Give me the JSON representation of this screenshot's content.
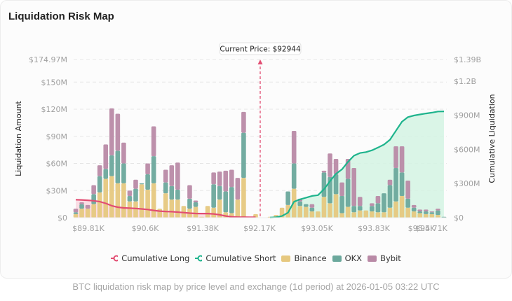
{
  "title": "Liquidation Risk Map",
  "caption": "BTC liquidation risk map by price level and exchange (1d period) at 2026-01-05 03:22 UTC",
  "colors": {
    "long": "#e24d72",
    "long_fill": "#f9d7df",
    "short": "#1fb48d",
    "short_fill": "#d4f3e3",
    "binance": "#e6c87f",
    "okx": "#6ba89c",
    "bybit": "#b98aa6"
  },
  "chart_data": {
    "type": "bar",
    "title": "Liquidation Risk Map",
    "current_price_label": "Current Price: $92944",
    "current_price": 92944,
    "ylabel_left": "Liquidation Amount",
    "ylabel_right": "Cumulative Liquidation",
    "ylim_left": [
      0,
      174.97
    ],
    "ylim_right": [
      0,
      1390
    ],
    "yticks_left": [
      "$0",
      "$30M",
      "$60M",
      "$90M",
      "$120M",
      "$150M",
      "$174.97M"
    ],
    "yticks_left_values": [
      0,
      30,
      60,
      90,
      120,
      150,
      174.97
    ],
    "yticks_right": [
      "$0",
      "$300M",
      "$600M",
      "$900M",
      "$1.2B",
      "$1.39B"
    ],
    "yticks_right_values": [
      0,
      300,
      600,
      900,
      1200,
      1390
    ],
    "xticks": [
      "$89.81K",
      "$90.6K",
      "$91.38K",
      "$92.17K",
      "$93.05K",
      "$93.83K",
      "$94.71K",
      "$95.5K"
    ],
    "grid": true,
    "legend": [
      "Cumulative Long",
      "Cumulative Short",
      "Binance",
      "OKX",
      "Bybit"
    ],
    "legend_position": "bottom",
    "long_side": {
      "binance": [
        4,
        10,
        10,
        15,
        28,
        43,
        46,
        38,
        38,
        18,
        18,
        37,
        31,
        38,
        10,
        27,
        20,
        20,
        13,
        10,
        12,
        1,
        13,
        11,
        20,
        6,
        5,
        20,
        44,
        0,
        4
      ],
      "okx": [
        2,
        5,
        0,
        11,
        18,
        11,
        23,
        36,
        22,
        6,
        14,
        1,
        17,
        30,
        0,
        12,
        15,
        11,
        0,
        11,
        5,
        0,
        0,
        26,
        15,
        23,
        29,
        0,
        50,
        0,
        0
      ],
      "bybit": [
        4,
        2,
        4,
        10,
        12,
        27,
        52,
        41,
        23,
        6,
        10,
        0,
        12,
        33,
        0,
        14,
        23,
        30,
        0,
        15,
        2,
        0,
        0,
        13,
        16,
        23,
        19,
        24,
        23,
        0,
        0
      ],
      "cumulative": [
        158,
        156,
        153,
        149,
        141,
        126,
        105,
        92,
        86,
        84,
        81,
        77,
        72,
        64,
        58,
        55,
        53,
        49,
        45,
        40,
        37,
        36,
        36,
        33,
        26,
        15,
        8,
        5,
        5,
        4,
        4
      ]
    },
    "short_side": {
      "binance": [
        1,
        3,
        11,
        14,
        32,
        13,
        12,
        7,
        7,
        23,
        16,
        26,
        5,
        12,
        6,
        8,
        8,
        7,
        6,
        6,
        11,
        18,
        24,
        11,
        7,
        5,
        4,
        4,
        3,
        0
      ],
      "okx": [
        0,
        0,
        0,
        15,
        28,
        5,
        3,
        4,
        0,
        27,
        29,
        22,
        19,
        31,
        7,
        5,
        0,
        6,
        10,
        21,
        25,
        37,
        26,
        10,
        4,
        2,
        3,
        2,
        5,
        1
      ],
      "bybit": [
        0,
        0,
        0,
        0,
        36,
        3,
        0,
        4,
        0,
        2,
        26,
        17,
        15,
        22,
        42,
        10,
        0,
        3,
        8,
        0,
        6,
        24,
        29,
        20,
        3,
        2,
        2,
        1,
        2,
        0
      ],
      "cumulative": [
        1,
        4,
        15,
        44,
        140,
        161,
        176,
        191,
        198,
        250,
        321,
        386,
        425,
        490,
        545,
        568,
        576,
        592,
        616,
        643,
        685,
        764,
        843,
        884,
        898,
        907,
        916,
        923,
        933,
        934
      ]
    }
  }
}
